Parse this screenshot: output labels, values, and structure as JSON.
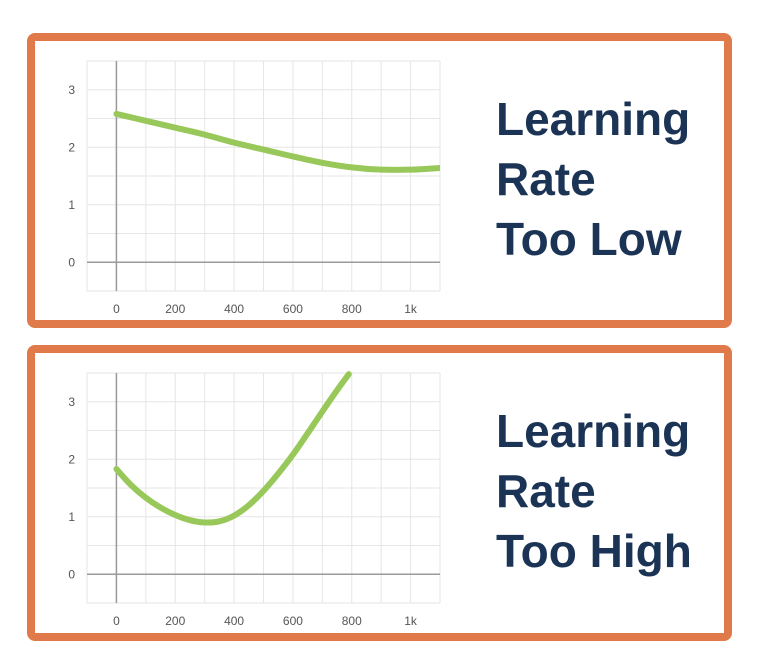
{
  "panels": [
    {
      "caption": [
        "Learning",
        "Rate",
        "Too Low"
      ],
      "chart_data": {
        "type": "line",
        "x_ticks": [
          "0",
          "200",
          "400",
          "600",
          "800",
          "1k"
        ],
        "x_tick_values": [
          0,
          200,
          400,
          600,
          800,
          1000
        ],
        "y_ticks": [
          "0",
          "1",
          "2",
          "3"
        ],
        "y_tick_values": [
          0,
          1,
          2,
          3
        ],
        "xlim": [
          -100,
          1100
        ],
        "ylim": [
          -0.5,
          3.5
        ],
        "grid": true,
        "line_color": "#98c85a",
        "series": [
          {
            "x": [
              0,
              100,
              200,
              300,
              400,
              500,
              600,
              700,
              800,
              900,
              1000,
              1100
            ],
            "y": [
              2.58,
              2.46,
              2.34,
              2.22,
              2.08,
              1.96,
              1.84,
              1.73,
              1.65,
              1.61,
              1.61,
              1.64
            ]
          }
        ]
      }
    },
    {
      "caption": [
        "Learning",
        "Rate",
        "Too High"
      ],
      "chart_data": {
        "type": "line",
        "x_ticks": [
          "0",
          "200",
          "400",
          "600",
          "800",
          "1k"
        ],
        "x_tick_values": [
          0,
          200,
          400,
          600,
          800,
          1000
        ],
        "y_ticks": [
          "0",
          "1",
          "2",
          "3"
        ],
        "y_tick_values": [
          0,
          1,
          2,
          3
        ],
        "xlim": [
          -100,
          1100
        ],
        "ylim": [
          -0.5,
          3.5
        ],
        "grid": true,
        "line_color": "#98c85a",
        "series": [
          {
            "x": [
              0,
              50,
              100,
              150,
              200,
              250,
              300,
              350,
              400,
              450,
              500,
              550,
              600,
              650,
              700,
              750,
              790
            ],
            "y": [
              1.83,
              1.55,
              1.33,
              1.16,
              1.03,
              0.94,
              0.9,
              0.92,
              1.02,
              1.2,
              1.45,
              1.75,
              2.08,
              2.45,
              2.83,
              3.2,
              3.48
            ]
          }
        ]
      }
    }
  ]
}
